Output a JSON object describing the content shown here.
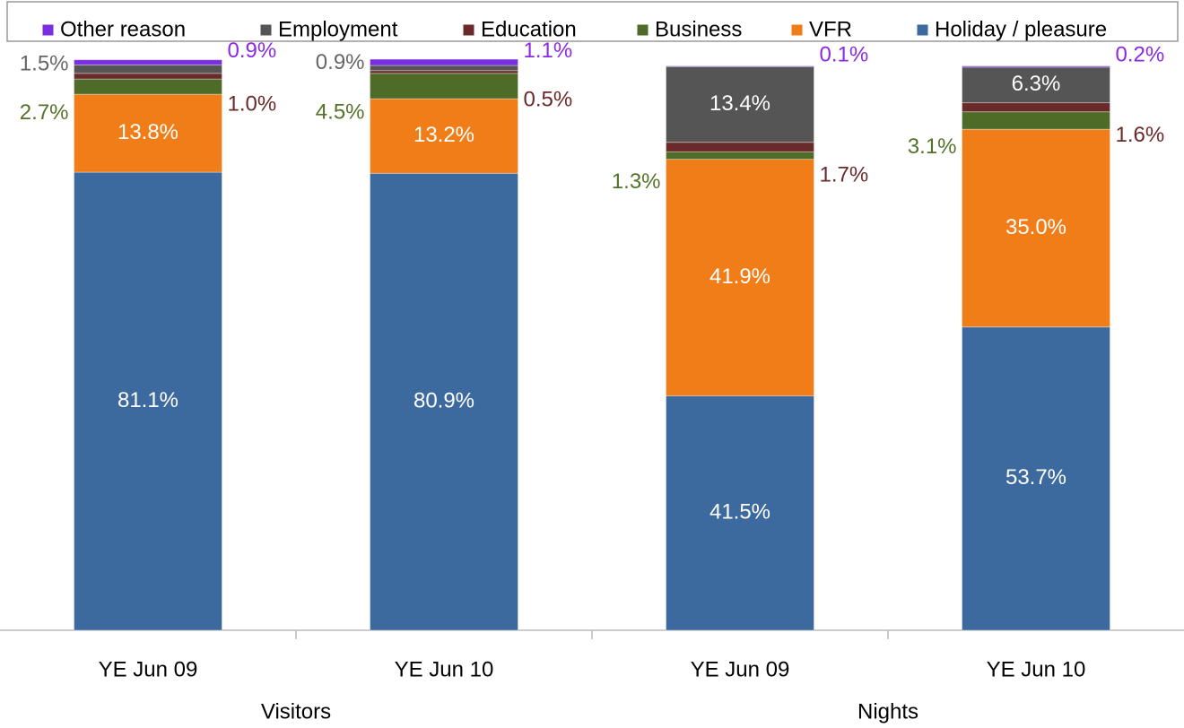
{
  "chart_data": {
    "type": "stacked-bar",
    "categories": [
      "YE Jun 09",
      "YE Jun 10",
      "YE Jun 09",
      "YE Jun 10"
    ],
    "group_labels": [
      "Visitors",
      "Nights"
    ],
    "ylim": [
      0,
      100
    ],
    "series": [
      {
        "name": "Holiday / pleasure",
        "color": "#3d6a9e",
        "label_color": "#ffffff",
        "values": [
          81.1,
          80.9,
          41.5,
          53.7
        ],
        "value_labels": [
          "81.1%",
          "80.9%",
          "41.5%",
          "53.7%"
        ]
      },
      {
        "name": "VFR",
        "color": "#f07d18",
        "label_color": "#ffffff",
        "values": [
          13.8,
          13.2,
          41.9,
          35.0
        ],
        "value_labels": [
          "13.8%",
          "13.2%",
          "41.9%",
          "35.0%"
        ]
      },
      {
        "name": "Business",
        "color": "#4f6b28",
        "label_color": "#55722a",
        "values": [
          2.7,
          4.5,
          1.3,
          3.1
        ],
        "value_labels": [
          "2.7%",
          "4.5%",
          "1.3%",
          "3.1%"
        ]
      },
      {
        "name": "Education",
        "color": "#6b2a2a",
        "label_color": "#6b2a2a",
        "values": [
          1.0,
          0.5,
          1.7,
          1.6
        ],
        "value_labels": [
          "1.0%",
          "0.5%",
          "1.7%",
          "1.6%"
        ]
      },
      {
        "name": "Employment",
        "color": "#555555",
        "label_color": "#666666",
        "values": [
          1.5,
          0.9,
          13.4,
          6.3
        ],
        "value_labels": [
          "1.5%",
          "0.9%",
          "13.4%",
          "6.3%"
        ]
      },
      {
        "name": "Other reason",
        "color": "#7a2ee0",
        "label_color": "#8a2be2",
        "values": [
          0.9,
          1.1,
          0.1,
          0.2
        ],
        "value_labels": [
          "0.9%",
          "1.1%",
          "0.1%",
          "0.2%"
        ]
      }
    ]
  }
}
